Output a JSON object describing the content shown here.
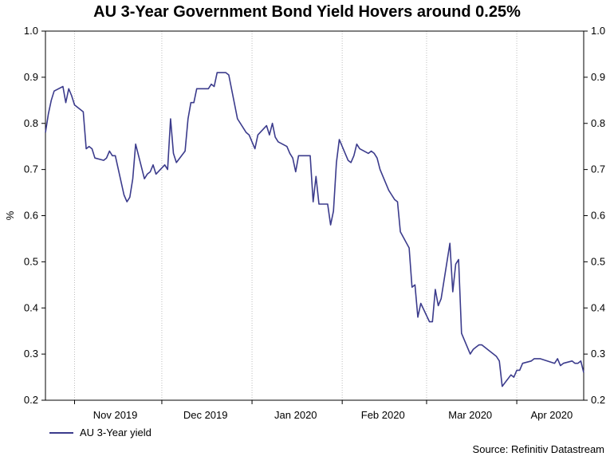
{
  "chart_data": {
    "type": "line",
    "title": "AU 3-Year Government Bond Yield Hovers around 0.25%",
    "ylabel": "%",
    "ylim": [
      0.2,
      1.0
    ],
    "yticks": [
      "0.2",
      "0.3",
      "0.4",
      "0.5",
      "0.6",
      "0.7",
      "0.8",
      "0.9",
      "1.0"
    ],
    "xticks": [
      "Nov 2019",
      "Dec 2019",
      "Jan 2020",
      "Feb 2020",
      "Mar 2020",
      "Apr 2020"
    ],
    "x_range": [
      "2019-10-22",
      "2020-04-24"
    ],
    "grid": "vertical dotted at month boundaries",
    "legend": "bottom-left",
    "series": [
      {
        "name": "AU 3-Year yield",
        "color": "#3b3b8c",
        "points": [
          [
            "2019-10-22",
            0.78
          ],
          [
            "2019-10-23",
            0.82
          ],
          [
            "2019-10-24",
            0.85
          ],
          [
            "2019-10-25",
            0.87
          ],
          [
            "2019-10-28",
            0.88
          ],
          [
            "2019-10-29",
            0.845
          ],
          [
            "2019-10-30",
            0.875
          ],
          [
            "2019-10-31",
            0.86
          ],
          [
            "2019-11-01",
            0.84
          ],
          [
            "2019-11-04",
            0.825
          ],
          [
            "2019-11-05",
            0.745
          ],
          [
            "2019-11-06",
            0.75
          ],
          [
            "2019-11-07",
            0.745
          ],
          [
            "2019-11-08",
            0.725
          ],
          [
            "2019-11-11",
            0.72
          ],
          [
            "2019-11-12",
            0.725
          ],
          [
            "2019-11-13",
            0.74
          ],
          [
            "2019-11-14",
            0.73
          ],
          [
            "2019-11-15",
            0.73
          ],
          [
            "2019-11-18",
            0.645
          ],
          [
            "2019-11-19",
            0.63
          ],
          [
            "2019-11-20",
            0.64
          ],
          [
            "2019-11-21",
            0.68
          ],
          [
            "2019-11-22",
            0.755
          ],
          [
            "2019-11-25",
            0.68
          ],
          [
            "2019-11-26",
            0.69
          ],
          [
            "2019-11-27",
            0.695
          ],
          [
            "2019-11-28",
            0.71
          ],
          [
            "2019-11-29",
            0.69
          ],
          [
            "2019-12-02",
            0.71
          ],
          [
            "2019-12-03",
            0.7
          ],
          [
            "2019-12-04",
            0.81
          ],
          [
            "2019-12-05",
            0.735
          ],
          [
            "2019-12-06",
            0.715
          ],
          [
            "2019-12-09",
            0.74
          ],
          [
            "2019-12-10",
            0.81
          ],
          [
            "2019-12-11",
            0.845
          ],
          [
            "2019-12-12",
            0.845
          ],
          [
            "2019-12-13",
            0.875
          ],
          [
            "2019-12-16",
            0.875
          ],
          [
            "2019-12-17",
            0.875
          ],
          [
            "2019-12-18",
            0.885
          ],
          [
            "2019-12-19",
            0.88
          ],
          [
            "2019-12-20",
            0.91
          ],
          [
            "2019-12-23",
            0.91
          ],
          [
            "2019-12-24",
            0.905
          ],
          [
            "2019-12-27",
            0.81
          ],
          [
            "2019-12-30",
            0.78
          ],
          [
            "2019-12-31",
            0.775
          ],
          [
            "2020-01-02",
            0.745
          ],
          [
            "2020-01-03",
            0.775
          ],
          [
            "2020-01-06",
            0.795
          ],
          [
            "2020-01-07",
            0.775
          ],
          [
            "2020-01-08",
            0.8
          ],
          [
            "2020-01-09",
            0.77
          ],
          [
            "2020-01-10",
            0.76
          ],
          [
            "2020-01-13",
            0.75
          ],
          [
            "2020-01-14",
            0.735
          ],
          [
            "2020-01-15",
            0.725
          ],
          [
            "2020-01-16",
            0.695
          ],
          [
            "2020-01-17",
            0.73
          ],
          [
            "2020-01-20",
            0.73
          ],
          [
            "2020-01-21",
            0.73
          ],
          [
            "2020-01-22",
            0.63
          ],
          [
            "2020-01-23",
            0.685
          ],
          [
            "2020-01-24",
            0.625
          ],
          [
            "2020-01-27",
            0.625
          ],
          [
            "2020-01-28",
            0.58
          ],
          [
            "2020-01-29",
            0.61
          ],
          [
            "2020-01-30",
            0.715
          ],
          [
            "2020-01-31",
            0.765
          ],
          [
            "2020-02-03",
            0.72
          ],
          [
            "2020-02-04",
            0.715
          ],
          [
            "2020-02-05",
            0.73
          ],
          [
            "2020-02-06",
            0.755
          ],
          [
            "2020-02-07",
            0.745
          ],
          [
            "2020-02-10",
            0.735
          ],
          [
            "2020-02-11",
            0.74
          ],
          [
            "2020-02-12",
            0.735
          ],
          [
            "2020-02-13",
            0.725
          ],
          [
            "2020-02-14",
            0.7
          ],
          [
            "2020-02-17",
            0.655
          ],
          [
            "2020-02-18",
            0.645
          ],
          [
            "2020-02-19",
            0.635
          ],
          [
            "2020-02-20",
            0.63
          ],
          [
            "2020-02-21",
            0.565
          ],
          [
            "2020-02-24",
            0.53
          ],
          [
            "2020-02-25",
            0.445
          ],
          [
            "2020-02-26",
            0.45
          ],
          [
            "2020-02-27",
            0.38
          ],
          [
            "2020-02-28",
            0.41
          ],
          [
            "2020-03-02",
            0.37
          ],
          [
            "2020-03-03",
            0.37
          ],
          [
            "2020-03-04",
            0.44
          ],
          [
            "2020-03-05",
            0.405
          ],
          [
            "2020-03-06",
            0.42
          ],
          [
            "2020-03-09",
            0.54
          ],
          [
            "2020-03-10",
            0.435
          ],
          [
            "2020-03-11",
            0.495
          ],
          [
            "2020-03-12",
            0.505
          ],
          [
            "2020-03-13",
            0.345
          ],
          [
            "2020-03-16",
            0.3
          ],
          [
            "2020-03-17",
            0.31
          ],
          [
            "2020-03-18",
            0.315
          ],
          [
            "2020-03-19",
            0.32
          ],
          [
            "2020-03-20",
            0.32
          ],
          [
            "2020-03-23",
            0.305
          ],
          [
            "2020-03-24",
            0.3
          ],
          [
            "2020-03-25",
            0.295
          ],
          [
            "2020-03-26",
            0.285
          ],
          [
            "2020-03-27",
            0.23
          ],
          [
            "2020-03-30",
            0.255
          ],
          [
            "2020-03-31",
            0.25
          ],
          [
            "2020-04-01",
            0.265
          ],
          [
            "2020-04-02",
            0.265
          ],
          [
            "2020-04-03",
            0.28
          ],
          [
            "2020-04-06",
            0.285
          ],
          [
            "2020-04-07",
            0.29
          ],
          [
            "2020-04-08",
            0.29
          ],
          [
            "2020-04-09",
            0.29
          ],
          [
            "2020-04-14",
            0.28
          ],
          [
            "2020-04-15",
            0.29
          ],
          [
            "2020-04-16",
            0.275
          ],
          [
            "2020-04-17",
            0.28
          ],
          [
            "2020-04-20",
            0.285
          ],
          [
            "2020-04-21",
            0.28
          ],
          [
            "2020-04-22",
            0.28
          ],
          [
            "2020-04-23",
            0.285
          ],
          [
            "2020-04-24",
            0.26
          ]
        ]
      }
    ]
  },
  "footer": {
    "legend_label": "AU 3-Year yield",
    "source": "Source: Refinitiv Datastream"
  }
}
